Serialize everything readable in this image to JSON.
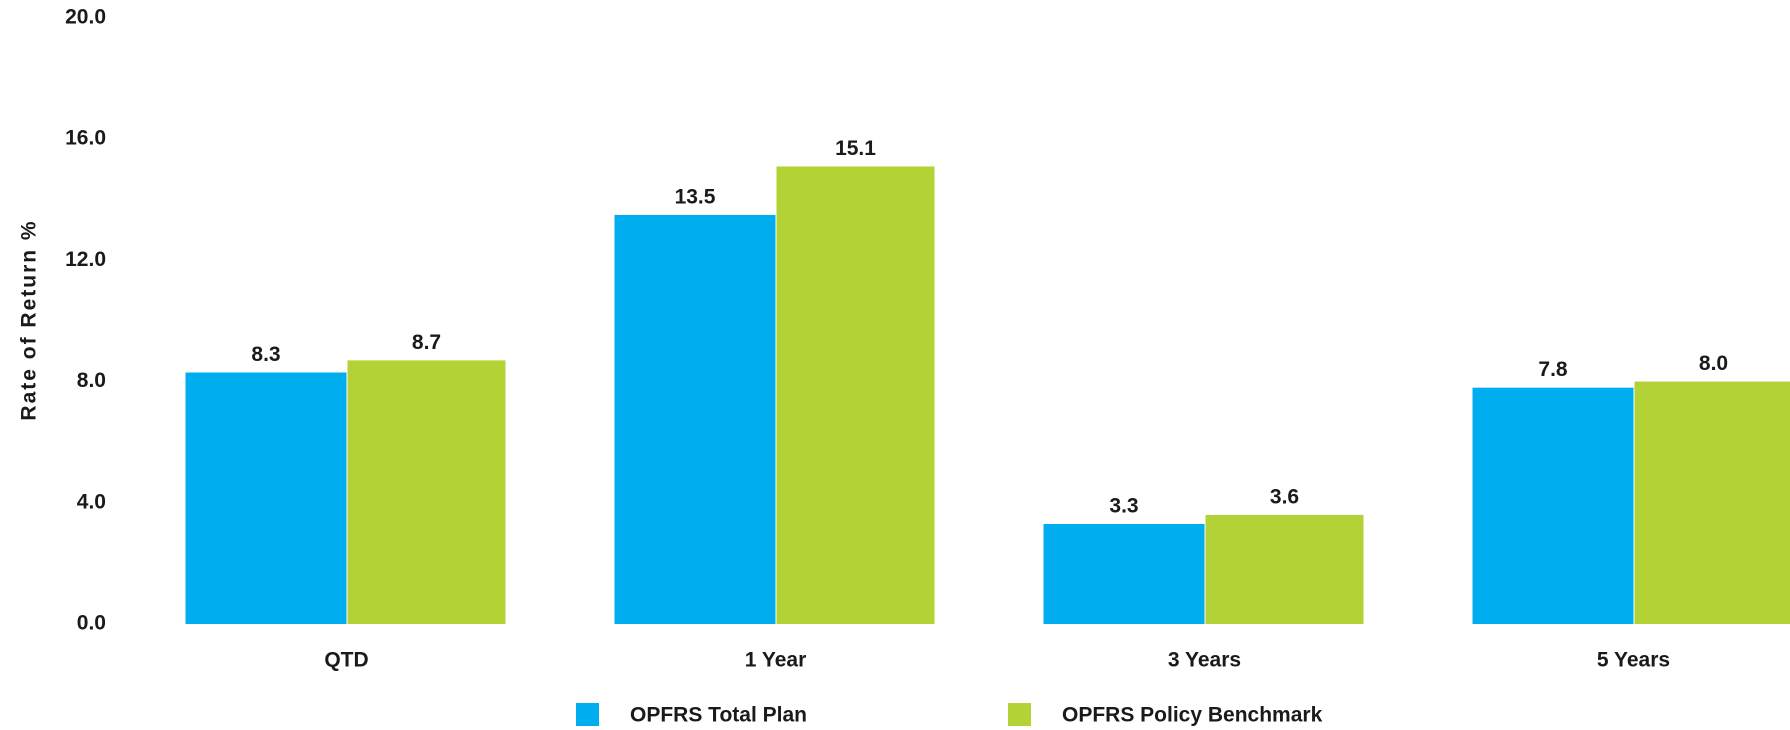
{
  "chart_data": {
    "type": "bar",
    "y_axis_label": "Rate of Return %",
    "categories": [
      "QTD",
      "1 Year",
      "3 Years",
      "5 Years"
    ],
    "series": [
      {
        "name": "OPFRS Total Plan",
        "color": "#00adef",
        "values": [
          8.3,
          13.5,
          3.3,
          7.8
        ]
      },
      {
        "name": "OPFRS Policy Benchmark",
        "color": "#b3d235",
        "values": [
          8.7,
          15.1,
          3.6,
          8.0
        ]
      }
    ],
    "ylim": [
      0,
      20
    ],
    "yticks": [
      {
        "value": 0,
        "label": "0.0"
      },
      {
        "value": 4,
        "label": "4.0"
      },
      {
        "value": 8,
        "label": "8.0"
      },
      {
        "value": 12,
        "label": "12.0"
      },
      {
        "value": 16,
        "label": "16.0"
      },
      {
        "value": 20,
        "label": "20.0"
      }
    ],
    "value_labels": [
      [
        "8.3",
        "13.5",
        "3.3",
        "7.8"
      ],
      [
        "8.7",
        "15.1",
        "3.6",
        "8.0"
      ]
    ]
  }
}
